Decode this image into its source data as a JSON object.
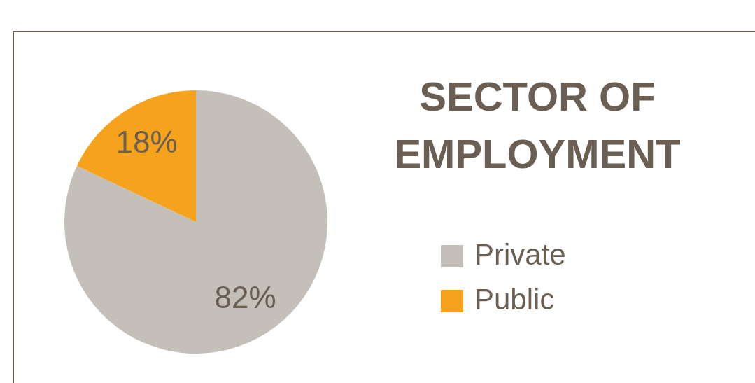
{
  "chart_data": {
    "type": "pie",
    "title": "SECTOR OF EMPLOYMENT",
    "categories": [
      "Private",
      "Public"
    ],
    "values": [
      82,
      18
    ],
    "colors": [
      "#c4bfb8",
      "#f5a31c"
    ],
    "value_labels": [
      "82%",
      "18%"
    ],
    "legend": "right"
  }
}
